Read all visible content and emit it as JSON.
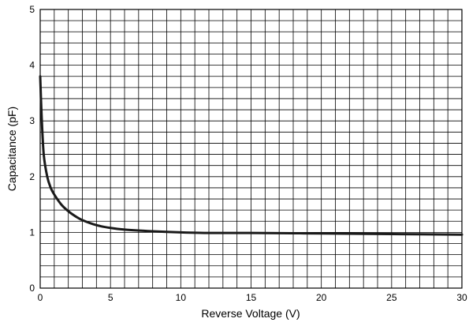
{
  "chart_data": {
    "type": "line",
    "title": "",
    "xlabel": "Reverse Voltage (V)",
    "ylabel": "Capacitance (pF)",
    "xlim": [
      0,
      30
    ],
    "ylim": [
      0,
      5
    ],
    "xticks": [
      "0",
      "5",
      "10",
      "15",
      "20",
      "25",
      "30"
    ],
    "yticks": [
      "0",
      "1",
      "2",
      "3",
      "4",
      "5"
    ],
    "grid": true,
    "minor_grid_x_step": 1,
    "minor_grid_y_step": 0.2,
    "series": [
      {
        "color": "#1a1a1a",
        "x": [
          0,
          0.1,
          0.25,
          0.5,
          0.75,
          1,
          1.5,
          2,
          2.5,
          3,
          4,
          5,
          6,
          8,
          10,
          12,
          15,
          18,
          20,
          25,
          30
        ],
        "y": [
          3.8,
          3.1,
          2.4,
          2.0,
          1.8,
          1.68,
          1.5,
          1.38,
          1.29,
          1.22,
          1.13,
          1.08,
          1.05,
          1.02,
          1.0,
          0.99,
          0.99,
          0.985,
          0.98,
          0.97,
          0.96
        ]
      }
    ]
  }
}
